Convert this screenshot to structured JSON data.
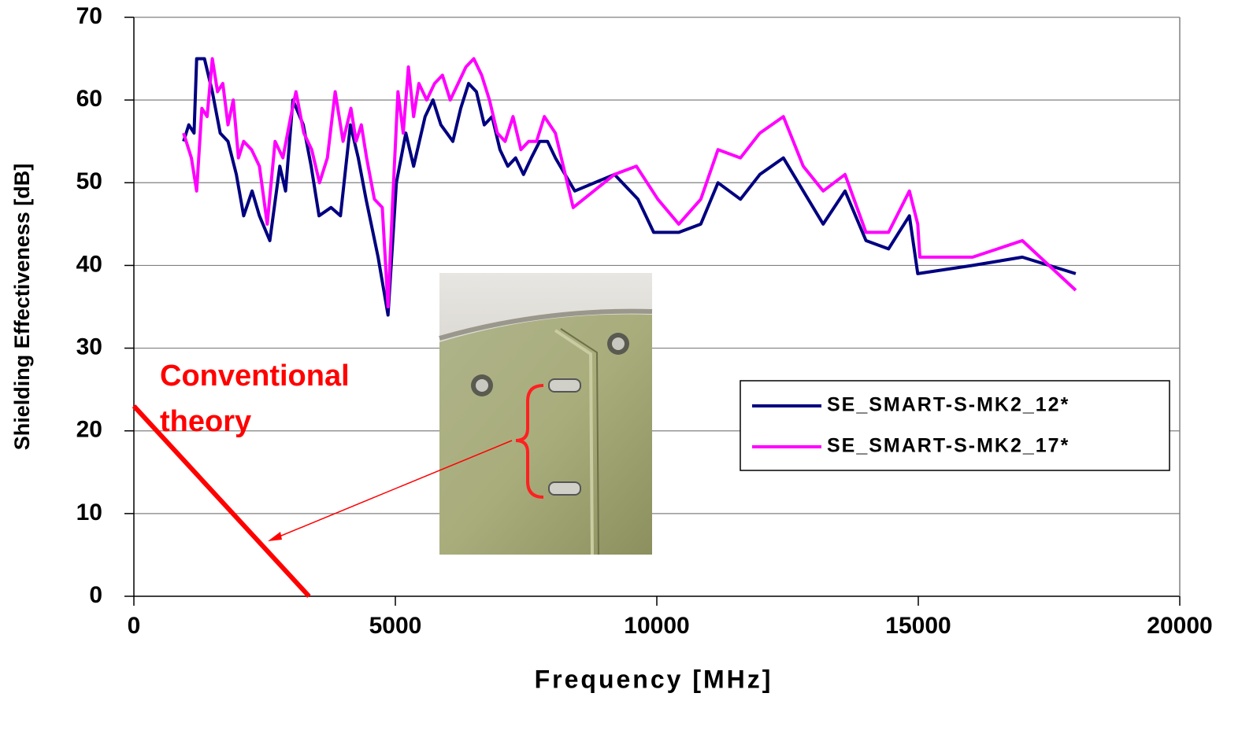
{
  "chart_data": {
    "type": "line",
    "xlabel": "Frequency [MHz]",
    "ylabel": "Shielding Effectiveness [dB]",
    "xlim": [
      0,
      20000
    ],
    "xticks": [
      0,
      5000,
      10000,
      15000,
      20000
    ],
    "ylim": [
      0,
      70
    ],
    "yticks": [
      0,
      10,
      20,
      30,
      40,
      50,
      60,
      70
    ],
    "grid": true,
    "legend": "right",
    "series": [
      {
        "name": "SE_SMART-S-MK2_12*",
        "color": "#000080",
        "x": [
          950,
          1050,
          1150,
          1200,
          1350,
          1500,
          1650,
          1800,
          1960,
          2100,
          2260,
          2400,
          2600,
          2790,
          2900,
          3040,
          3240,
          3390,
          3540,
          3770,
          3950,
          4140,
          4290,
          4440,
          4670,
          4860,
          5020,
          5200,
          5350,
          5570,
          5720,
          5870,
          6100,
          6250,
          6400,
          6550,
          6700,
          6850,
          7000,
          7150,
          7300,
          7450,
          7600,
          7760,
          7910,
          8060,
          8430,
          9190,
          9640,
          9940,
          10420,
          10840,
          11170,
          11600,
          11970,
          12420,
          13180,
          13600,
          14000,
          14430,
          14830,
          14990,
          16040,
          16990,
          18010
        ],
        "values": [
          55,
          57,
          56,
          65,
          65,
          61,
          56,
          55,
          51,
          46,
          49,
          46,
          43,
          52,
          49,
          60,
          57,
          52,
          46,
          47,
          46,
          57,
          53,
          48,
          41,
          34,
          50,
          56,
          52,
          58,
          60,
          57,
          55,
          59,
          62,
          61,
          57,
          58,
          54,
          52,
          53,
          51,
          53,
          55,
          55,
          53,
          49,
          51,
          48,
          44,
          44,
          45,
          50,
          48,
          51,
          53,
          45,
          49,
          43,
          42,
          46,
          39,
          40,
          41,
          39
        ]
      },
      {
        "name": "SE_SMART-S-MK2_17*",
        "color": "#ff00ff",
        "x": [
          950,
          1100,
          1200,
          1300,
          1400,
          1500,
          1600,
          1700,
          1800,
          1900,
          2000,
          2100,
          2250,
          2400,
          2550,
          2700,
          2850,
          3000,
          3100,
          3250,
          3400,
          3550,
          3700,
          3850,
          4000,
          4150,
          4250,
          4350,
          4450,
          4600,
          4750,
          4860,
          4950,
          5050,
          5150,
          5250,
          5350,
          5450,
          5600,
          5750,
          5900,
          6050,
          6200,
          6350,
          6500,
          6650,
          6800,
          6950,
          7100,
          7250,
          7400,
          7550,
          7700,
          7850,
          8060,
          8400,
          9190,
          9610,
          10020,
          10420,
          10840,
          11170,
          11600,
          11970,
          12420,
          12800,
          13180,
          13600,
          14000,
          14430,
          14830,
          14990,
          15030,
          16040,
          16990,
          18010
        ],
        "values": [
          56,
          53,
          49,
          59,
          58,
          65,
          61,
          62,
          57,
          60,
          53,
          55,
          54,
          52,
          45,
          55,
          53,
          58,
          61,
          56,
          54,
          50,
          53,
          61,
          55,
          59,
          55,
          57,
          53,
          48,
          47,
          35,
          48,
          61,
          56,
          64,
          58,
          62,
          60,
          62,
          63,
          60,
          62,
          64,
          65,
          63,
          60,
          56,
          55,
          58,
          54,
          55,
          55,
          58,
          56,
          47,
          51,
          52,
          48,
          45,
          48,
          54,
          53,
          56,
          58,
          52,
          49,
          51,
          44,
          44,
          49,
          45,
          41,
          41,
          43,
          37
        ]
      }
    ],
    "annotation": {
      "lines": [
        "Conventional",
        "theory"
      ],
      "color": "#ff0000",
      "x": [
        0,
        3350
      ],
      "y": [
        23,
        0
      ]
    }
  }
}
